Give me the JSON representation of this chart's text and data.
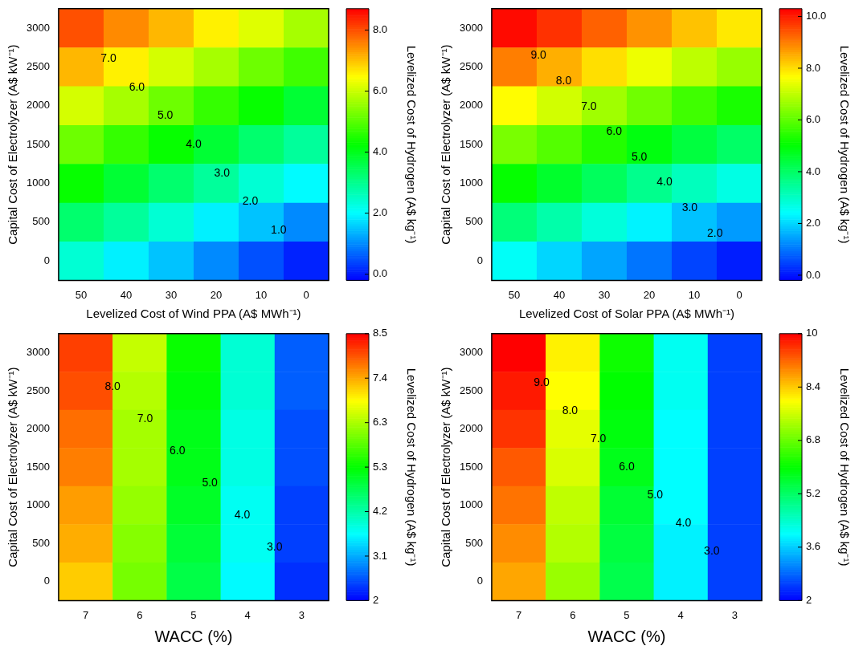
{
  "chart_data": [
    {
      "type": "heatmap",
      "xlabel": "Levelized Cost of Wind PPA (A$ MWh⁻¹)",
      "ylabel": "Capital Cost of Electrolyzer (A$ kW⁻¹)",
      "clabel": "Levelized Cost of Hydrogen (A$ kg⁻¹)",
      "categories": [
        "50",
        "40",
        "30",
        "20",
        "10",
        "0"
      ],
      "y_categories": [
        "3000",
        "2500",
        "2000",
        "1500",
        "1000",
        "500",
        "0"
      ],
      "cells": [
        [
          8.0,
          7.5,
          7.1,
          6.6,
          6.2,
          5.7
        ],
        [
          7.1,
          6.6,
          6.1,
          5.7,
          5.2,
          4.8
        ],
        [
          6.1,
          5.7,
          5.2,
          4.7,
          4.3,
          3.8
        ],
        [
          5.2,
          4.7,
          4.3,
          3.8,
          3.3,
          2.9
        ],
        [
          4.3,
          3.8,
          3.3,
          2.9,
          2.4,
          2.0
        ],
        [
          3.3,
          2.9,
          2.4,
          1.9,
          1.5,
          1.0
        ],
        [
          2.4,
          1.9,
          1.5,
          1.0,
          0.5,
          0.1
        ]
      ],
      "clim": [
        -0.2,
        8.7
      ],
      "cticks": [
        {
          "value": 0,
          "label": "0.0"
        },
        {
          "value": 2,
          "label": "2.0"
        },
        {
          "value": 4,
          "label": "4.0"
        },
        {
          "value": 6,
          "label": "6.0"
        },
        {
          "value": 8,
          "label": "8.0"
        }
      ],
      "annotations": [
        "7.0",
        "6.0",
        "5.0",
        "4.0",
        "3.0",
        "2.0",
        "1.0"
      ]
    },
    {
      "type": "heatmap",
      "xlabel": "Levelized Cost of Solar PPA (A$ MWh⁻¹)",
      "ylabel": "Capital Cost of Electrolyzer (A$ kW⁻¹)",
      "clabel": "Levelized Cost of Hydrogen (A$ kg⁻¹)",
      "categories": [
        "50",
        "40",
        "30",
        "20",
        "10",
        "0"
      ],
      "y_categories": [
        "3000",
        "2500",
        "2000",
        "1500",
        "1000",
        "500",
        "0"
      ],
      "cells": [
        [
          10.2,
          9.8,
          9.3,
          8.8,
          8.3,
          7.9
        ],
        [
          9.0,
          8.5,
          8.0,
          7.5,
          7.0,
          6.6
        ],
        [
          7.7,
          7.2,
          6.7,
          6.2,
          5.7,
          5.3
        ],
        [
          6.3,
          5.9,
          5.4,
          4.9,
          4.4,
          4.0
        ],
        [
          5.1,
          4.6,
          4.1,
          3.6,
          3.1,
          2.7
        ],
        [
          3.8,
          3.3,
          2.8,
          2.3,
          1.8,
          1.4
        ],
        [
          2.5,
          2.0,
          1.5,
          1.0,
          0.5,
          0.1
        ]
      ],
      "clim": [
        -0.2,
        10.3
      ],
      "cticks": [
        {
          "value": 0,
          "label": "0.0"
        },
        {
          "value": 2,
          "label": "2.0"
        },
        {
          "value": 4,
          "label": "4.0"
        },
        {
          "value": 6,
          "label": "6.0"
        },
        {
          "value": 8,
          "label": "8.0"
        },
        {
          "value": 10,
          "label": "10.0"
        }
      ],
      "annotations": [
        "9.0",
        "8.0",
        "7.0",
        "6.0",
        "5.0",
        "4.0",
        "3.0",
        "2.0"
      ]
    },
    {
      "type": "heatmap",
      "xlabel": "WACC (%)",
      "ylabel": "Capital Cost of Electrolyzer (A$ kW⁻¹)",
      "clabel": "Levelized Cost of Hydrogen (A$ kg⁻¹)",
      "categories": [
        "7",
        "6",
        "5",
        "4",
        "3"
      ],
      "y_categories": [
        "3000",
        "2500",
        "2000",
        "1500",
        "1000",
        "500",
        "0"
      ],
      "cells": [
        [
          8.1,
          6.5,
          5.3,
          3.9,
          2.6
        ],
        [
          8.0,
          6.4,
          5.2,
          3.9,
          2.6
        ],
        [
          7.8,
          6.3,
          5.1,
          3.8,
          2.5
        ],
        [
          7.7,
          6.3,
          5.1,
          3.8,
          2.5
        ],
        [
          7.5,
          6.2,
          5.0,
          3.7,
          2.4
        ],
        [
          7.4,
          6.1,
          4.9,
          3.7,
          2.4
        ],
        [
          7.2,
          6.0,
          4.8,
          3.6,
          2.3
        ]
      ],
      "clim": [
        2,
        8.5
      ],
      "cticks": [
        2,
        {
          "value": 3.083,
          "label": "3.1"
        },
        {
          "value": 4.167,
          "label": "4.2"
        },
        {
          "value": 5.25,
          "label": "5.3"
        },
        {
          "value": 6.333,
          "label": "6.3"
        },
        {
          "value": 7.417,
          "label": "7.4"
        },
        8.5
      ],
      "annotations": [
        "8.0",
        "7.0",
        "6.0",
        "5.0",
        "4.0",
        "3.0"
      ]
    },
    {
      "type": "heatmap",
      "xlabel": "WACC (%)",
      "ylabel": "Capital Cost of Electrolyzer (A$ kW⁻¹)",
      "clabel": "Levelized Cost of Hydrogen (A$ kg⁻¹)",
      "categories": [
        "7",
        "6",
        "5",
        "4",
        "3"
      ],
      "y_categories": [
        "3000",
        "2500",
        "2000",
        "1500",
        "1000",
        "500",
        "0"
      ],
      "cells": [
        [
          10.0,
          8.1,
          6.1,
          4.1,
          2.5
        ],
        [
          9.8,
          8.0,
          6.0,
          4.1,
          2.5
        ],
        [
          9.6,
          7.8,
          5.9,
          4.0,
          2.5
        ],
        [
          9.3,
          7.7,
          5.8,
          4.0,
          2.5
        ],
        [
          9.1,
          7.5,
          5.6,
          4.0,
          2.5
        ],
        [
          8.9,
          7.4,
          5.5,
          3.9,
          2.5
        ],
        [
          8.7,
          7.2,
          5.4,
          3.9,
          2.5
        ]
      ],
      "clim": [
        2,
        10
      ],
      "cticks": [
        2,
        3.6,
        5.2,
        6.8,
        8.4,
        10
      ],
      "annotations": [
        "9.0",
        "8.0",
        "7.0",
        "6.0",
        "5.0",
        "4.0",
        "3.0"
      ]
    }
  ]
}
